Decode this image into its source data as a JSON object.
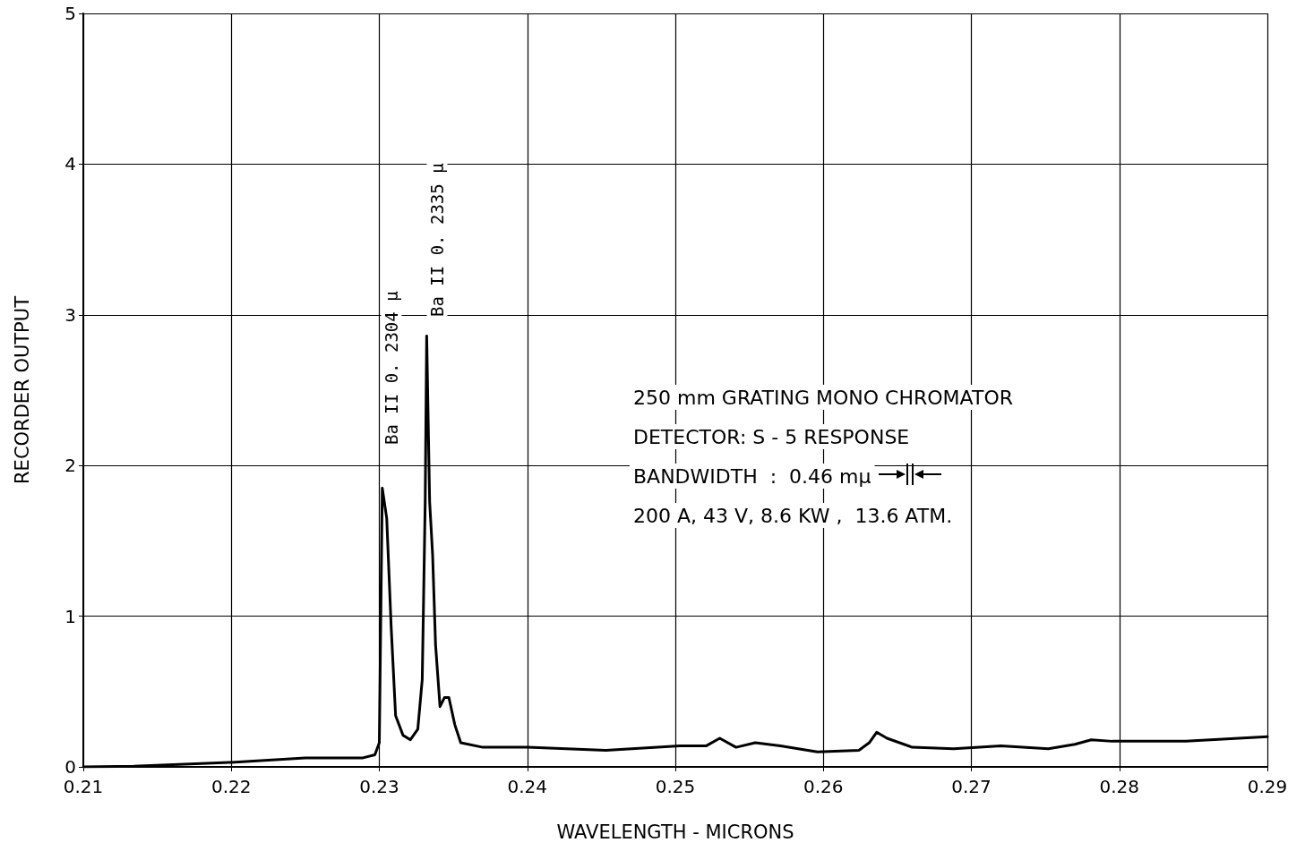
{
  "chart_data": {
    "type": "line",
    "xlabel": "WAVELENGTH - MICRONS",
    "ylabel": "RECORDER OUTPUT",
    "xlim": [
      0.21,
      0.29
    ],
    "xticks": [
      {
        "value": 0.21,
        "label": "0.21"
      },
      {
        "value": 0.22,
        "label": "0.22"
      },
      {
        "value": 0.23,
        "label": "0.23"
      },
      {
        "value": 0.24,
        "label": "0.24"
      },
      {
        "value": 0.25,
        "label": "0.25"
      },
      {
        "value": 0.26,
        "label": "0.26"
      },
      {
        "value": 0.27,
        "label": "0.27"
      },
      {
        "value": 0.28,
        "label": "0.28"
      },
      {
        "value": 0.29,
        "label": "0.29"
      }
    ],
    "ylim": [
      0,
      5
    ],
    "yticks": [
      0,
      1,
      2,
      3,
      4,
      5
    ],
    "grid": true,
    "marker": "none",
    "line_style": "solid",
    "annotations": [
      "Ba II 0. 2304 μ",
      "Ba II 0. 2335 μ",
      "250 mm GRATING MONO CHROMATOR",
      "DETECTOR: S - 5 RESPONSE",
      "BANDWIDTH  :  0.46 mμ",
      "200 A, 43 V, 8.6 KW ,  13.6 ATM."
    ],
    "series": [
      {
        "color": "#000000",
        "x": [
          0.21,
          0.2134,
          0.22,
          0.225,
          0.2289,
          0.2297,
          0.23,
          0.2302,
          0.2305,
          0.2308,
          0.2311,
          0.2316,
          0.2321,
          0.2326,
          0.2329,
          0.2331,
          0.2332,
          0.2334,
          0.2336,
          0.2338,
          0.2341,
          0.2344,
          0.2347,
          0.2351,
          0.2355,
          0.237,
          0.24,
          0.2453,
          0.2503,
          0.2521,
          0.253,
          0.2541,
          0.2554,
          0.2571,
          0.2596,
          0.2624,
          0.2631,
          0.2636,
          0.2643,
          0.266,
          0.2688,
          0.272,
          0.2752,
          0.277,
          0.2781,
          0.2795,
          0.2845,
          0.29
        ],
        "values": [
          0,
          0.005,
          0.03,
          0.06,
          0.06,
          0.08,
          0.16,
          1.85,
          1.65,
          0.93,
          0.34,
          0.21,
          0.18,
          0.25,
          0.58,
          1.76,
          2.86,
          1.76,
          1.41,
          0.81,
          0.4,
          0.46,
          0.46,
          0.28,
          0.16,
          0.13,
          0.13,
          0.11,
          0.14,
          0.14,
          0.19,
          0.13,
          0.16,
          0.14,
          0.1,
          0.11,
          0.16,
          0.23,
          0.19,
          0.13,
          0.12,
          0.14,
          0.12,
          0.15,
          0.18,
          0.17,
          0.17,
          0.2
        ]
      }
    ]
  }
}
